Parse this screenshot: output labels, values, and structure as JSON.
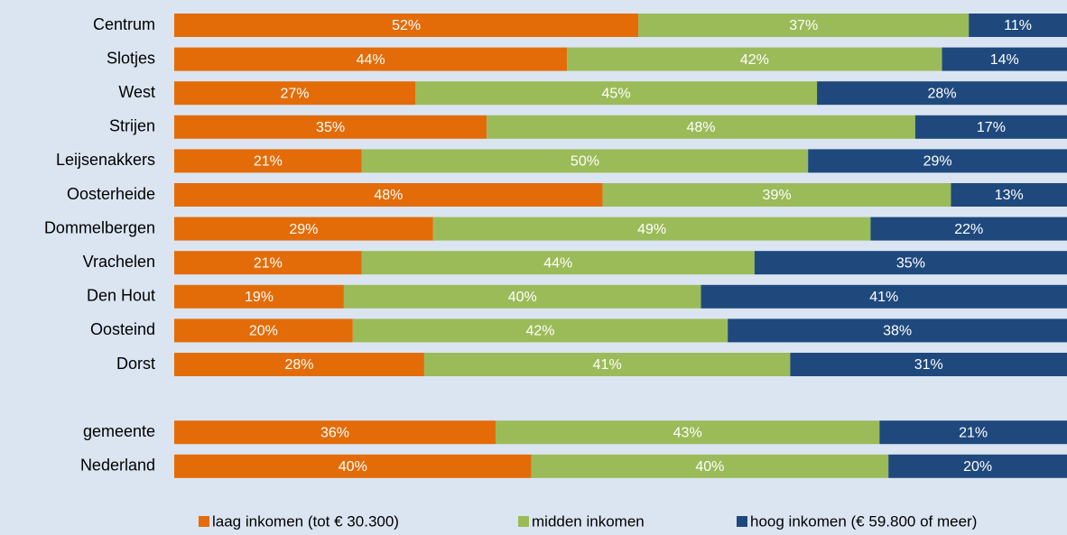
{
  "chart_data": {
    "type": "stacked-bar-horizontal",
    "categories": [
      "Centrum",
      "Slotjes",
      "West",
      "Strijen",
      "Leijsenakkers",
      "Oosterheide",
      "Dommelbergen",
      "Vrachelen",
      "Den Hout",
      "Oosteind",
      "Dorst",
      null,
      "gemeente",
      "Nederland"
    ],
    "xlim": [
      0,
      100
    ],
    "legend": "bottom",
    "series": [
      {
        "name": "laag inkomen (tot € 30.300)",
        "color": "#e36c09",
        "values": [
          52,
          44,
          27,
          35,
          21,
          48,
          29,
          21,
          19,
          20,
          28,
          null,
          36,
          40
        ],
        "value_labels": [
          "52%",
          "44%",
          "27%",
          "35%",
          "21%",
          "48%",
          "29%",
          "21%",
          "19%",
          "20%",
          "28%",
          null,
          "36%",
          "40%"
        ]
      },
      {
        "name": "midden inkomen",
        "color": "#9bbb59",
        "values": [
          37,
          42,
          45,
          48,
          50,
          39,
          49,
          44,
          40,
          42,
          41,
          null,
          43,
          40
        ],
        "value_labels": [
          "37%",
          "42%",
          "45%",
          "48%",
          "50%",
          "39%",
          "49%",
          "44%",
          "40%",
          "42%",
          "41%",
          null,
          "43%",
          "40%"
        ]
      },
      {
        "name": "hoog inkomen (€ 59.800 of meer)",
        "color": "#1f497d",
        "values": [
          11,
          14,
          28,
          17,
          29,
          13,
          22,
          35,
          41,
          38,
          31,
          null,
          21,
          20
        ],
        "value_labels": [
          "11%",
          "14%",
          "28%",
          "17%",
          "29%",
          "13%",
          "22%",
          "35%",
          "41%",
          "38%",
          "31%",
          null,
          "21%",
          "20%"
        ]
      }
    ]
  }
}
